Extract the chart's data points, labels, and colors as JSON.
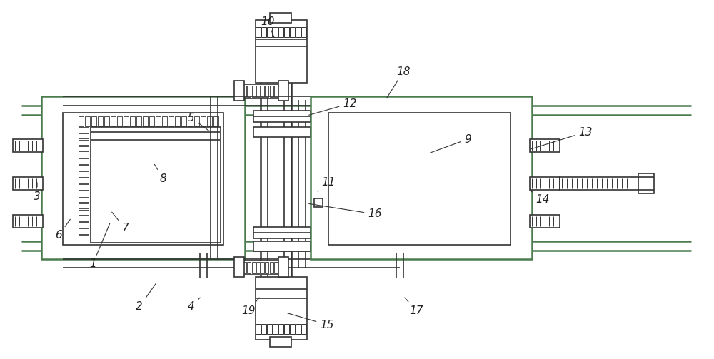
{
  "bg_color": "#ffffff",
  "line_color": "#333333",
  "green_color": "#4a7c4e",
  "lw_thin": 0.8,
  "lw_med": 1.2,
  "lw_thick": 1.8,
  "font_size": 11,
  "label_color": "#222222",
  "annotations": [
    [
      "1",
      [
        130,
        370
      ],
      [
        155,
        310
      ]
    ],
    [
      "2",
      [
        195,
        430
      ],
      [
        220,
        395
      ]
    ],
    [
      "3",
      [
        52,
        275
      ],
      [
        52,
        253
      ]
    ],
    [
      "4",
      [
        268,
        430
      ],
      [
        282,
        415
      ]
    ],
    [
      "5",
      [
        268,
        165
      ],
      [
        295,
        185
      ]
    ],
    [
      "6",
      [
        82,
        330
      ],
      [
        100,
        305
      ]
    ],
    [
      "7",
      [
        175,
        320
      ],
      [
        155,
        295
      ]
    ],
    [
      "8",
      [
        228,
        250
      ],
      [
        215,
        228
      ]
    ],
    [
      "9",
      [
        655,
        195
      ],
      [
        600,
        215
      ]
    ],
    [
      "10",
      [
        375,
        30
      ],
      [
        385,
        55
      ]
    ],
    [
      "11",
      [
        460,
        255
      ],
      [
        445,
        268
      ]
    ],
    [
      "12",
      [
        490,
        145
      ],
      [
        430,
        162
      ]
    ],
    [
      "13",
      [
        820,
        185
      ],
      [
        740,
        210
      ]
    ],
    [
      "14",
      [
        760,
        280
      ],
      [
        740,
        265
      ]
    ],
    [
      "15",
      [
        458,
        455
      ],
      [
        400,
        438
      ]
    ],
    [
      "16",
      [
        525,
        300
      ],
      [
        430,
        285
      ]
    ],
    [
      "17",
      [
        583,
        435
      ],
      [
        565,
        415
      ]
    ],
    [
      "18",
      [
        565,
        100
      ],
      [
        540,
        140
      ]
    ],
    [
      "19",
      [
        348,
        435
      ],
      [
        365,
        415
      ]
    ]
  ]
}
